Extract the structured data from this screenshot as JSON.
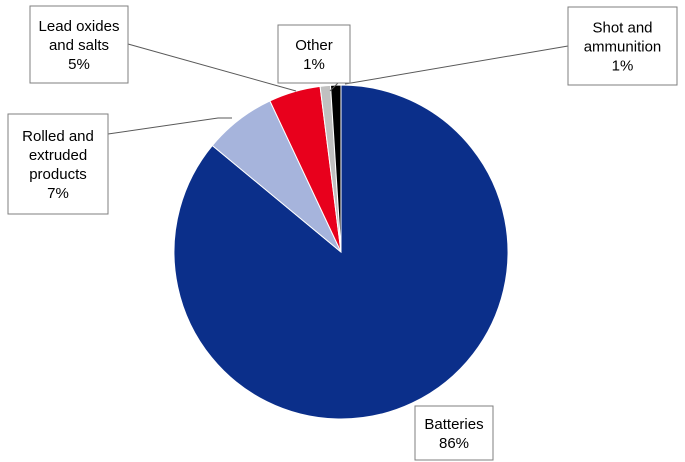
{
  "chart_data": {
    "type": "pie",
    "title": "",
    "start_angle_deg": 0,
    "direction": "clockwise",
    "slices": [
      {
        "label_lines": [
          "Batteries"
        ],
        "value": 86,
        "value_label": "86%",
        "color": "#0b2f8a"
      },
      {
        "label_lines": [
          "Rolled and",
          "extruded",
          "products"
        ],
        "value": 7,
        "value_label": "7%",
        "color": "#a6b4dc"
      },
      {
        "label_lines": [
          "Lead oxides",
          "and salts"
        ],
        "value": 5,
        "value_label": "5%",
        "color": "#e8001c"
      },
      {
        "label_lines": [
          "Other"
        ],
        "value": 1,
        "value_label": "1%",
        "color": "#c0c0c0"
      },
      {
        "label_lines": [
          "Shot and",
          "ammunition"
        ],
        "value": 1,
        "value_label": "1%",
        "color": "#000000"
      }
    ]
  }
}
